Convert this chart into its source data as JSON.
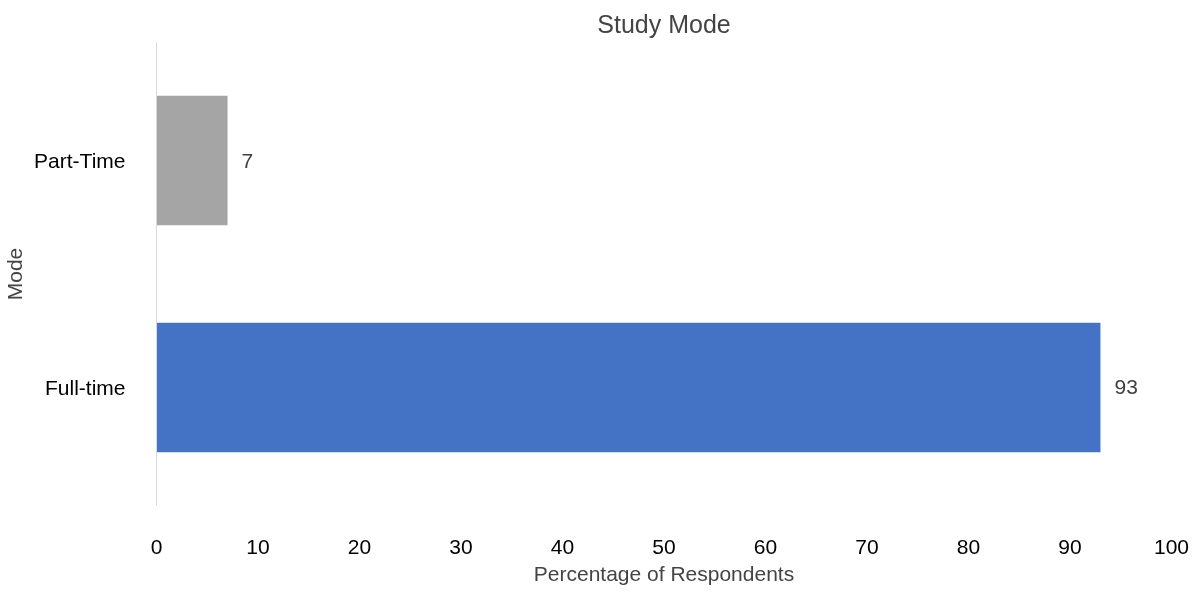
{
  "chart_data": {
    "type": "bar",
    "orientation": "horizontal",
    "title": "Study Mode",
    "xlabel": "Percentage of Respondents",
    "ylabel": "Mode",
    "categories": [
      "Part-Time",
      "Full-time"
    ],
    "values": [
      7,
      93
    ],
    "colors": [
      "#a5a5a5",
      "#4472c4"
    ],
    "xlim": [
      0,
      100
    ],
    "xticks": [
      0,
      10,
      20,
      30,
      40,
      50,
      60,
      70,
      80,
      90,
      100
    ],
    "grid": false,
    "data_labels": true
  }
}
